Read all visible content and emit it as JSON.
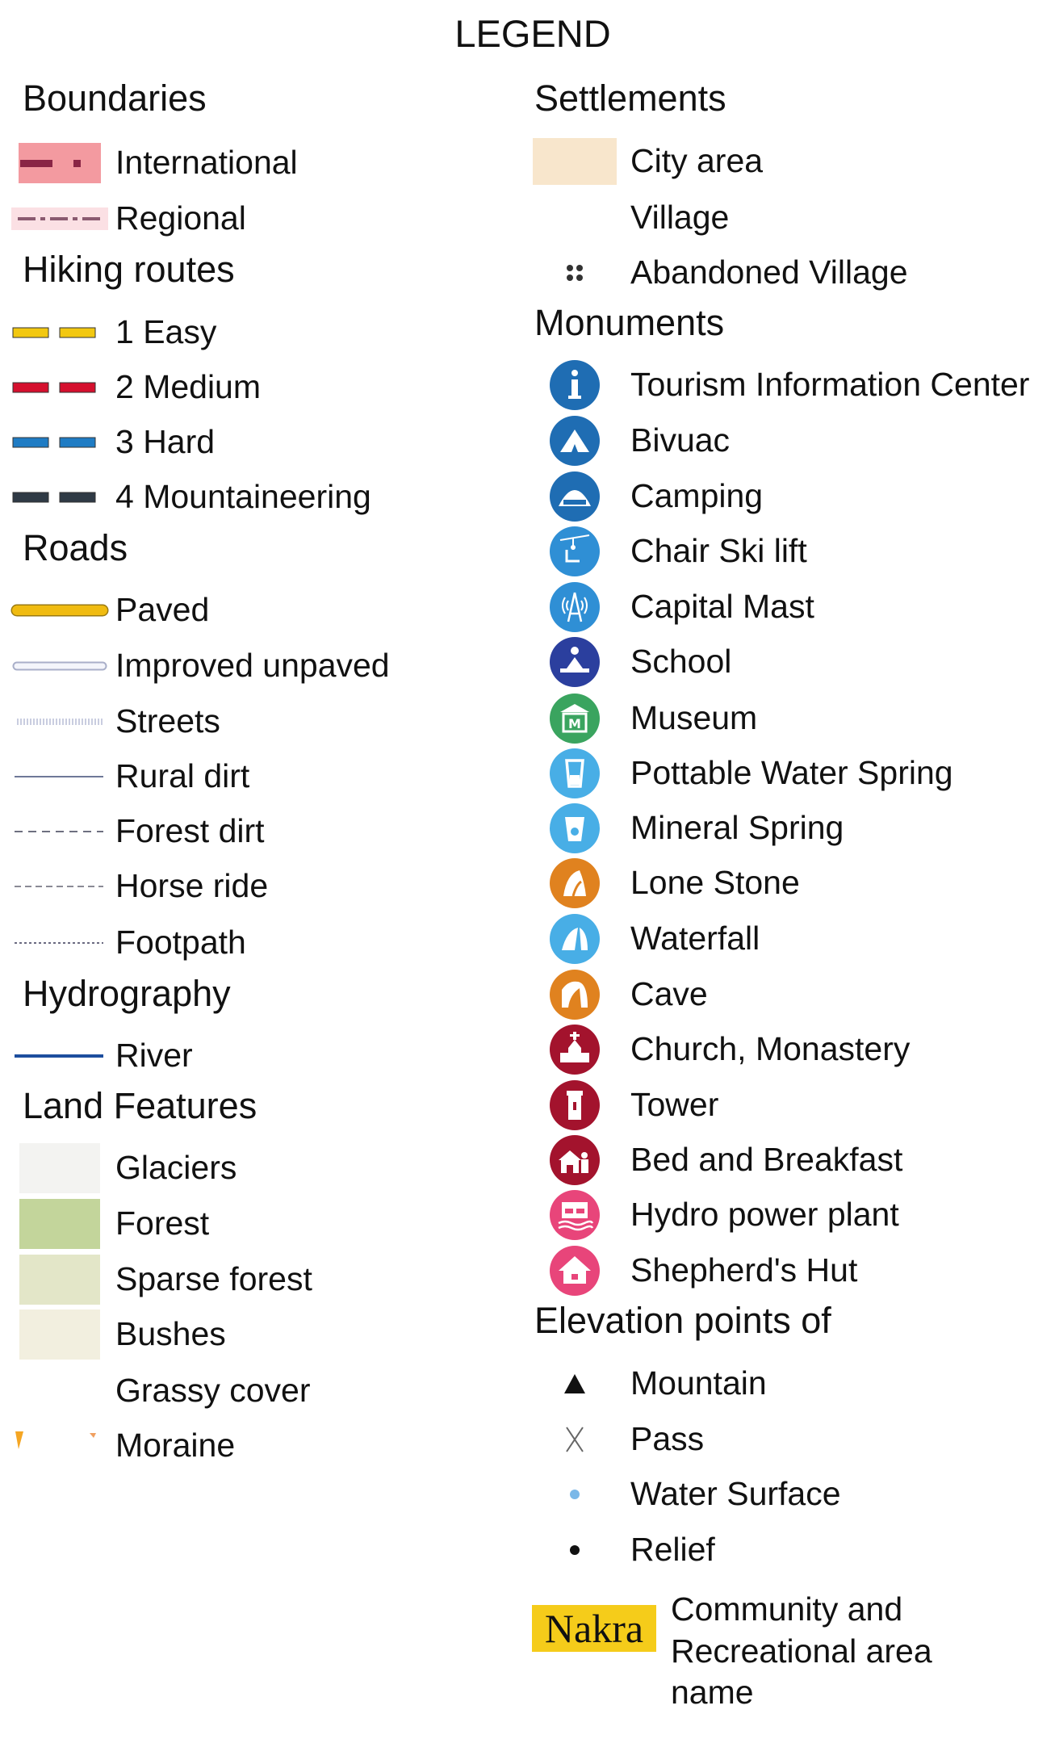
{
  "title": "LEGEND",
  "left": [
    {
      "title": "Boundaries",
      "items": [
        {
          "label": "International",
          "symbol": "international-border"
        },
        {
          "label": "Regional",
          "symbol": "regional-border"
        }
      ]
    },
    {
      "title": "Hiking routes",
      "items": [
        {
          "label": "1 Easy",
          "symbol": "route-easy"
        },
        {
          "label": "2 Medium",
          "symbol": "route-medium"
        },
        {
          "label": "3 Hard",
          "symbol": "route-hard"
        },
        {
          "label": "4 Mountaineering",
          "symbol": "route-mountaineering"
        }
      ]
    },
    {
      "title": "Roads",
      "items": [
        {
          "label": "Paved",
          "symbol": "road-paved"
        },
        {
          "label": "Improved unpaved",
          "symbol": "road-improved"
        },
        {
          "label": "Streets",
          "symbol": "road-streets"
        },
        {
          "label": "Rural dirt",
          "symbol": "road-rural"
        },
        {
          "label": "Forest dirt",
          "symbol": "road-forest"
        },
        {
          "label": "Horse ride",
          "symbol": "road-horse"
        },
        {
          "label": "Footpath",
          "symbol": "road-footpath"
        }
      ]
    },
    {
      "title": "Hydrography",
      "items": [
        {
          "label": "River",
          "symbol": "river"
        }
      ]
    },
    {
      "title": "Land Features",
      "items": [
        {
          "label": "Glaciers",
          "symbol": "swatch-glaciers"
        },
        {
          "label": "Forest",
          "symbol": "swatch-forest"
        },
        {
          "label": "Sparse forest",
          "symbol": "swatch-sparse"
        },
        {
          "label": "Bushes",
          "symbol": "swatch-bushes"
        },
        {
          "label": "Grassy cover",
          "symbol": "swatch-grassy"
        },
        {
          "label": "Moraine",
          "symbol": "moraine"
        }
      ]
    }
  ],
  "right": [
    {
      "title": "Settlements",
      "items": [
        {
          "label": "City area",
          "symbol": "city-area"
        },
        {
          "label": "Village",
          "symbol": "village"
        },
        {
          "label": "Abandoned Village",
          "symbol": "abandoned-village"
        }
      ]
    },
    {
      "title": "Monuments",
      "items": [
        {
          "label": "Tourism Information Center",
          "symbol": "info",
          "color": "#1f6db3"
        },
        {
          "label": "Bivuac",
          "symbol": "bivouac",
          "color": "#1f6db3"
        },
        {
          "label": "Camping",
          "symbol": "camping",
          "color": "#1f6db3"
        },
        {
          "label": "Chair Ski lift",
          "symbol": "chairlift",
          "color": "#2f8fd5"
        },
        {
          "label": "Capital Mast",
          "symbol": "mast",
          "color": "#2f8fd5"
        },
        {
          "label": "School",
          "symbol": "school",
          "color": "#2b3f9e"
        },
        {
          "label": "Museum",
          "symbol": "museum",
          "color": "#3aa45f"
        },
        {
          "label": "Pottable Water Spring",
          "symbol": "water-spring",
          "color": "#48aee6"
        },
        {
          "label": "Mineral Spring",
          "symbol": "mineral-spring",
          "color": "#48aee6"
        },
        {
          "label": "Lone Stone",
          "symbol": "lone-stone",
          "color": "#e0821f"
        },
        {
          "label": "Waterfall",
          "symbol": "waterfall",
          "color": "#48aee6"
        },
        {
          "label": "Cave",
          "symbol": "cave",
          "color": "#e0821f"
        },
        {
          "label": "Church, Monastery",
          "symbol": "church",
          "color": "#a3132d"
        },
        {
          "label": "Tower",
          "symbol": "tower",
          "color": "#a3132d"
        },
        {
          "label": "Bed and Breakfast",
          "symbol": "bed-breakfast",
          "color": "#a3132d"
        },
        {
          "label": "Hydro power plant",
          "symbol": "hydro-plant",
          "color": "#e8457a"
        },
        {
          "label": "Shepherd's Hut",
          "symbol": "shepherd-hut",
          "color": "#e8457a"
        }
      ]
    },
    {
      "title": "Elevation points of",
      "items": [
        {
          "label": "Mountain",
          "symbol": "mountain-triangle"
        },
        {
          "label": "Pass",
          "symbol": "pass-cross"
        },
        {
          "label": "Water Surface",
          "symbol": "water-dot"
        },
        {
          "label": "Relief",
          "symbol": "relief-dot"
        }
      ]
    }
  ],
  "community": {
    "sample": "Nakra",
    "label": "Community and Recreational area name",
    "color": "#f5cc1a"
  },
  "colors": {
    "easy": "#f2c811",
    "medium": "#d5102e",
    "hard": "#1f7cc4",
    "mountaineering": "#2f3a45",
    "paved": "#f0bb10",
    "river": "#1d4e9e",
    "international": "#f39aa0",
    "regional": "#fbe0e4",
    "city_area": "#f8e6cc",
    "glaciers": "#f3f3f1",
    "forest": "#c3d59b",
    "sparse_forest": "#e3e6c8",
    "bushes": "#f2efdf"
  }
}
